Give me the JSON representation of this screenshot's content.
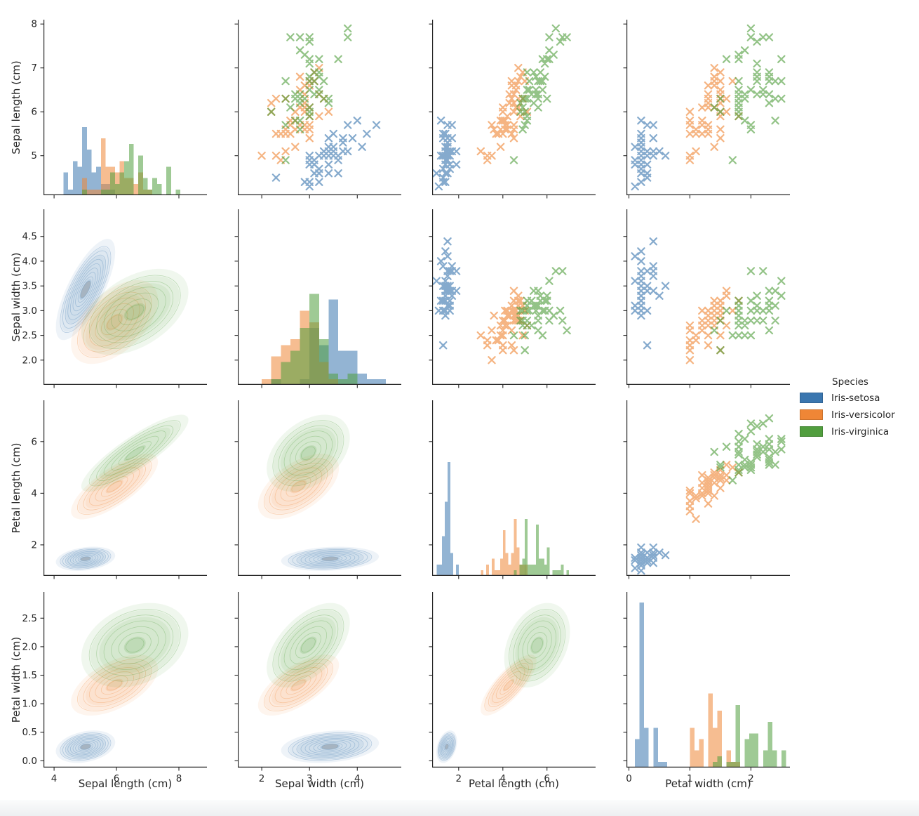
{
  "chart_data": {
    "type": "scatter",
    "subtype": "pairplot-matrix",
    "grid": {
      "diagonal": "histogram",
      "upper_triangle": "scatter-x-markers",
      "lower_triangle": "kde-contours"
    },
    "variables": [
      "Sepal length (cm)",
      "Sepal width (cm)",
      "Petal length (cm)",
      "Petal width (cm)"
    ],
    "legend": {
      "title": "Species"
    },
    "axes": {
      "col_xlims": [
        [
          3.66,
          8.9
        ],
        [
          1.5,
          4.92
        ],
        [
          0.8,
          8.2
        ],
        [
          -0.04,
          2.64
        ]
      ],
      "row_ylims": [
        [
          4.1,
          8.1
        ],
        [
          1.5,
          5.05
        ],
        [
          0.8,
          7.6
        ],
        [
          -0.12,
          2.96
        ]
      ],
      "col_xticks": [
        [
          "4",
          "6",
          "8"
        ],
        [
          "2",
          "3",
          "4"
        ],
        [
          "2",
          "4",
          "6"
        ],
        [
          "0",
          "1",
          "2"
        ]
      ],
      "row_yticks": [
        [
          "5",
          "6",
          "7",
          "8"
        ],
        [
          "2.0",
          "2.5",
          "3.0",
          "3.5",
          "4.0",
          "4.5"
        ],
        [
          "2",
          "4",
          "6"
        ],
        [
          "0.0",
          "0.5",
          "1.0",
          "1.5",
          "2.0",
          "2.5"
        ]
      ]
    },
    "style": {
      "marker": "x",
      "marker_opacity": 0.62,
      "hist_opacity": 0.55,
      "spine_color": "#262626",
      "tick_color": "#262626",
      "kde_core_color": "#99a0a8",
      "hist_bins": [
        [
          4.3,
          0.15
        ],
        [
          2.0,
          0.2
        ],
        [
          1.0,
          0.125
        ],
        [
          0.1,
          0.075
        ]
      ]
    },
    "series": [
      {
        "name": "Iris-setosa",
        "color": "#3a76af",
        "points": [
          [
            5.1,
            3.5,
            1.4,
            0.2
          ],
          [
            4.9,
            3.0,
            1.4,
            0.2
          ],
          [
            4.7,
            3.2,
            1.3,
            0.2
          ],
          [
            4.6,
            3.1,
            1.5,
            0.2
          ],
          [
            5.0,
            3.6,
            1.4,
            0.2
          ],
          [
            5.4,
            3.9,
            1.7,
            0.4
          ],
          [
            4.6,
            3.4,
            1.4,
            0.3
          ],
          [
            5.0,
            3.4,
            1.5,
            0.2
          ],
          [
            4.4,
            2.9,
            1.4,
            0.2
          ],
          [
            4.9,
            3.1,
            1.5,
            0.1
          ],
          [
            5.4,
            3.7,
            1.5,
            0.2
          ],
          [
            4.8,
            3.4,
            1.6,
            0.2
          ],
          [
            4.8,
            3.0,
            1.4,
            0.1
          ],
          [
            4.3,
            3.0,
            1.1,
            0.1
          ],
          [
            5.8,
            4.0,
            1.2,
            0.2
          ],
          [
            5.7,
            4.4,
            1.5,
            0.4
          ],
          [
            5.4,
            3.9,
            1.3,
            0.4
          ],
          [
            5.1,
            3.5,
            1.4,
            0.3
          ],
          [
            5.7,
            3.8,
            1.7,
            0.3
          ],
          [
            5.1,
            3.8,
            1.5,
            0.3
          ],
          [
            5.4,
            3.4,
            1.7,
            0.2
          ],
          [
            5.1,
            3.7,
            1.5,
            0.4
          ],
          [
            4.6,
            3.6,
            1.0,
            0.2
          ],
          [
            5.1,
            3.3,
            1.7,
            0.5
          ],
          [
            4.8,
            3.4,
            1.9,
            0.2
          ],
          [
            5.0,
            3.0,
            1.6,
            0.2
          ],
          [
            5.0,
            3.4,
            1.6,
            0.4
          ],
          [
            5.2,
            3.5,
            1.5,
            0.2
          ],
          [
            5.2,
            3.4,
            1.4,
            0.2
          ],
          [
            4.7,
            3.2,
            1.6,
            0.2
          ],
          [
            4.8,
            3.1,
            1.6,
            0.2
          ],
          [
            5.4,
            3.4,
            1.5,
            0.4
          ],
          [
            5.2,
            4.1,
            1.5,
            0.1
          ],
          [
            5.5,
            4.2,
            1.4,
            0.2
          ],
          [
            4.9,
            3.1,
            1.5,
            0.2
          ],
          [
            5.0,
            3.2,
            1.2,
            0.2
          ],
          [
            5.5,
            3.5,
            1.3,
            0.2
          ],
          [
            4.9,
            3.6,
            1.4,
            0.1
          ],
          [
            4.4,
            3.0,
            1.3,
            0.2
          ],
          [
            5.1,
            3.4,
            1.5,
            0.2
          ],
          [
            5.0,
            3.5,
            1.3,
            0.3
          ],
          [
            4.5,
            2.3,
            1.3,
            0.3
          ],
          [
            4.4,
            3.2,
            1.3,
            0.2
          ],
          [
            5.0,
            3.5,
            1.6,
            0.6
          ],
          [
            5.1,
            3.8,
            1.9,
            0.4
          ],
          [
            4.8,
            3.0,
            1.4,
            0.3
          ],
          [
            5.1,
            3.8,
            1.6,
            0.2
          ],
          [
            4.6,
            3.2,
            1.4,
            0.2
          ],
          [
            5.3,
            3.7,
            1.5,
            0.2
          ],
          [
            5.0,
            3.3,
            1.4,
            0.2
          ]
        ]
      },
      {
        "name": "Iris-versicolor",
        "color": "#ef8636",
        "points": [
          [
            7.0,
            3.2,
            4.7,
            1.4
          ],
          [
            6.4,
            3.2,
            4.5,
            1.5
          ],
          [
            6.9,
            3.1,
            4.9,
            1.5
          ],
          [
            5.5,
            2.3,
            4.0,
            1.3
          ],
          [
            6.5,
            2.8,
            4.6,
            1.5
          ],
          [
            5.7,
            2.8,
            4.5,
            1.3
          ],
          [
            6.3,
            3.3,
            4.7,
            1.6
          ],
          [
            4.9,
            2.4,
            3.3,
            1.0
          ],
          [
            6.6,
            2.9,
            4.6,
            1.3
          ],
          [
            5.2,
            2.7,
            3.9,
            1.4
          ],
          [
            5.0,
            2.0,
            3.5,
            1.0
          ],
          [
            5.9,
            3.0,
            4.2,
            1.5
          ],
          [
            6.0,
            2.2,
            4.0,
            1.0
          ],
          [
            6.1,
            2.9,
            4.7,
            1.4
          ],
          [
            5.6,
            2.9,
            3.6,
            1.3
          ],
          [
            6.7,
            3.1,
            4.4,
            1.4
          ],
          [
            5.6,
            3.0,
            4.5,
            1.5
          ],
          [
            5.8,
            2.7,
            4.1,
            1.0
          ],
          [
            6.2,
            2.2,
            4.5,
            1.5
          ],
          [
            5.6,
            2.5,
            3.9,
            1.1
          ],
          [
            5.9,
            3.2,
            4.8,
            1.8
          ],
          [
            6.1,
            2.8,
            4.0,
            1.3
          ],
          [
            6.3,
            2.5,
            4.9,
            1.5
          ],
          [
            6.1,
            2.8,
            4.7,
            1.2
          ],
          [
            6.4,
            2.9,
            4.3,
            1.3
          ],
          [
            6.6,
            3.0,
            4.4,
            1.4
          ],
          [
            6.8,
            2.8,
            4.8,
            1.4
          ],
          [
            6.7,
            3.0,
            5.0,
            1.7
          ],
          [
            6.0,
            2.9,
            4.5,
            1.5
          ],
          [
            5.7,
            2.6,
            3.5,
            1.0
          ],
          [
            5.5,
            2.4,
            3.8,
            1.1
          ],
          [
            5.5,
            2.4,
            3.7,
            1.0
          ],
          [
            5.8,
            2.7,
            3.9,
            1.2
          ],
          [
            6.0,
            2.7,
            5.1,
            1.6
          ],
          [
            5.4,
            3.0,
            4.5,
            1.5
          ],
          [
            6.0,
            3.4,
            4.5,
            1.6
          ],
          [
            6.7,
            3.1,
            4.7,
            1.5
          ],
          [
            6.3,
            2.3,
            4.4,
            1.3
          ],
          [
            5.6,
            3.0,
            4.1,
            1.3
          ],
          [
            5.5,
            2.5,
            4.0,
            1.3
          ],
          [
            5.5,
            2.6,
            4.4,
            1.2
          ],
          [
            6.1,
            3.0,
            4.6,
            1.4
          ],
          [
            5.8,
            2.6,
            4.0,
            1.2
          ],
          [
            5.0,
            2.3,
            3.3,
            1.0
          ],
          [
            5.6,
            2.7,
            4.2,
            1.3
          ],
          [
            5.7,
            3.0,
            4.2,
            1.2
          ],
          [
            5.7,
            2.9,
            4.2,
            1.3
          ],
          [
            6.2,
            2.9,
            4.3,
            1.3
          ],
          [
            5.1,
            2.5,
            3.0,
            1.1
          ],
          [
            5.7,
            2.8,
            4.1,
            1.3
          ]
        ]
      },
      {
        "name": "Iris-virginica",
        "color": "#519e3e",
        "points": [
          [
            6.3,
            3.3,
            6.0,
            2.5
          ],
          [
            5.8,
            2.7,
            5.1,
            1.9
          ],
          [
            7.1,
            3.0,
            5.9,
            2.1
          ],
          [
            6.3,
            2.9,
            5.6,
            1.8
          ],
          [
            6.5,
            3.0,
            5.8,
            2.2
          ],
          [
            7.6,
            3.0,
            6.6,
            2.1
          ],
          [
            4.9,
            2.5,
            4.5,
            1.7
          ],
          [
            7.3,
            2.9,
            6.3,
            1.8
          ],
          [
            6.7,
            2.5,
            5.8,
            1.8
          ],
          [
            7.2,
            3.6,
            6.1,
            2.5
          ],
          [
            6.5,
            3.2,
            5.1,
            2.0
          ],
          [
            6.4,
            2.7,
            5.3,
            1.9
          ],
          [
            6.8,
            3.0,
            5.5,
            2.1
          ],
          [
            5.7,
            2.5,
            5.0,
            2.0
          ],
          [
            5.8,
            2.8,
            5.1,
            2.4
          ],
          [
            6.4,
            3.2,
            5.3,
            2.3
          ],
          [
            6.5,
            3.0,
            5.5,
            1.8
          ],
          [
            7.7,
            3.8,
            6.7,
            2.2
          ],
          [
            7.7,
            2.6,
            6.9,
            2.3
          ],
          [
            6.0,
            2.2,
            5.0,
            1.5
          ],
          [
            6.9,
            3.2,
            5.7,
            2.3
          ],
          [
            5.6,
            2.8,
            4.9,
            2.0
          ],
          [
            7.7,
            2.8,
            6.7,
            2.0
          ],
          [
            6.3,
            2.7,
            4.9,
            1.8
          ],
          [
            6.7,
            3.3,
            5.7,
            2.1
          ],
          [
            7.2,
            3.2,
            6.0,
            1.8
          ],
          [
            6.2,
            2.8,
            4.8,
            1.8
          ],
          [
            6.1,
            3.0,
            4.9,
            1.8
          ],
          [
            6.4,
            2.8,
            5.6,
            2.1
          ],
          [
            7.2,
            3.0,
            5.8,
            1.6
          ],
          [
            7.4,
            2.8,
            6.1,
            1.9
          ],
          [
            7.9,
            3.8,
            6.4,
            2.0
          ],
          [
            6.4,
            2.8,
            5.6,
            2.2
          ],
          [
            6.3,
            2.8,
            5.1,
            1.5
          ],
          [
            6.1,
            2.6,
            5.6,
            1.4
          ],
          [
            7.7,
            3.0,
            6.1,
            2.3
          ],
          [
            6.3,
            3.4,
            5.6,
            2.4
          ],
          [
            6.4,
            3.1,
            5.5,
            1.8
          ],
          [
            6.0,
            3.0,
            4.8,
            1.8
          ],
          [
            6.9,
            3.1,
            5.4,
            2.1
          ],
          [
            6.7,
            3.1,
            5.6,
            2.4
          ],
          [
            6.9,
            3.1,
            5.1,
            2.3
          ],
          [
            5.8,
            2.7,
            5.1,
            1.9
          ],
          [
            6.8,
            3.2,
            5.9,
            2.3
          ],
          [
            6.7,
            3.3,
            5.7,
            2.5
          ],
          [
            6.7,
            3.0,
            5.2,
            2.3
          ],
          [
            6.3,
            2.5,
            5.0,
            1.9
          ],
          [
            6.5,
            3.0,
            5.2,
            2.0
          ],
          [
            6.2,
            3.4,
            5.4,
            2.3
          ],
          [
            5.9,
            3.0,
            5.1,
            1.8
          ]
        ]
      }
    ]
  }
}
